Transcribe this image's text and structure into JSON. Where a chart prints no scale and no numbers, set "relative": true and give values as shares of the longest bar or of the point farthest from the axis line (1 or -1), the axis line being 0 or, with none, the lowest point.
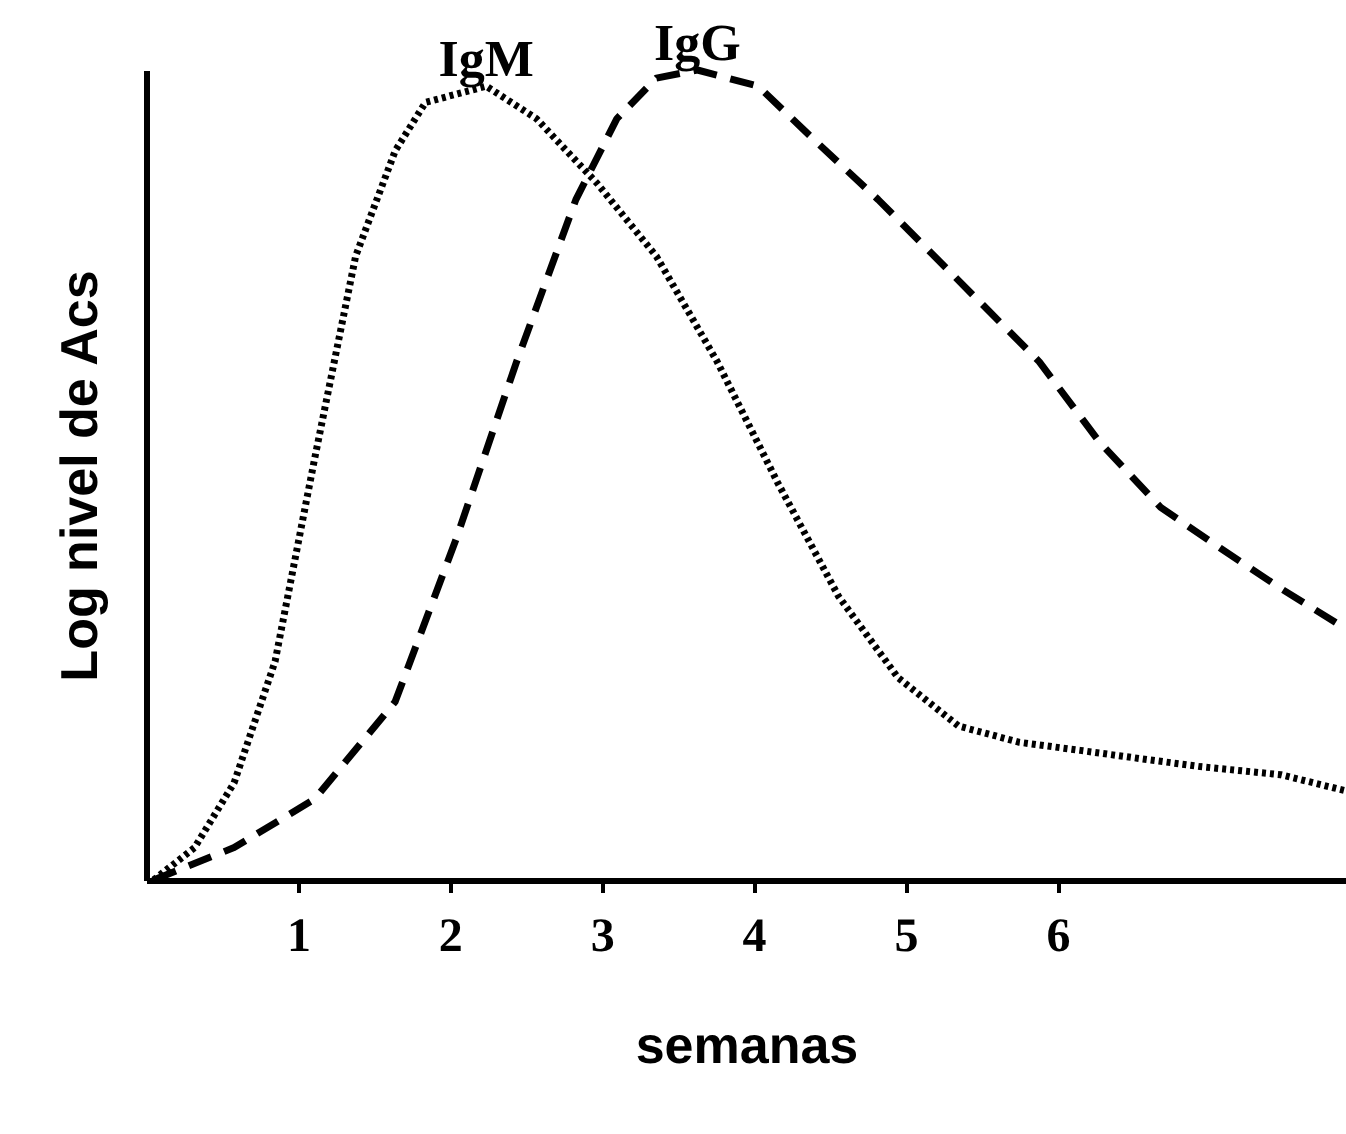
{
  "chart_data": {
    "type": "line",
    "xlabel": "semanas",
    "ylabel": "Log  nivel de Acs",
    "relative": true,
    "xlim": [
      0,
      7.9
    ],
    "xticks": [
      1,
      2,
      3,
      4,
      5,
      6
    ],
    "grid": false,
    "legend": false,
    "series": [
      {
        "name": "IgM",
        "color": "#000000",
        "line_style": "dotted",
        "x": [
          0.05,
          0.32,
          0.58,
          0.85,
          1.11,
          1.38,
          1.64,
          1.84,
          2.24,
          2.57,
          2.97,
          3.36,
          3.76,
          4.16,
          4.56,
          4.95,
          5.35,
          5.75,
          6.15,
          6.54,
          6.94,
          7.47,
          7.9
        ],
        "values": [
          0,
          0.04,
          0.12,
          0.27,
          0.52,
          0.77,
          0.9,
          0.96,
          0.98,
          0.94,
          0.86,
          0.77,
          0.64,
          0.49,
          0.35,
          0.25,
          0.19,
          0.17,
          0.16,
          0.15,
          0.14,
          0.13,
          0.11
        ]
      },
      {
        "name": "IgG",
        "color": "#000000",
        "line_style": "dashed",
        "x": [
          0.05,
          0.58,
          1.11,
          1.64,
          2.04,
          2.44,
          2.83,
          3.1,
          3.36,
          3.63,
          4.03,
          4.42,
          4.82,
          5.35,
          5.88,
          6.28,
          6.68,
          7.07,
          7.47,
          7.9
        ],
        "values": [
          0,
          0.04,
          0.1,
          0.22,
          0.42,
          0.64,
          0.84,
          0.94,
          0.99,
          1,
          0.98,
          0.91,
          0.84,
          0.74,
          0.64,
          0.54,
          0.46,
          0.41,
          0.36,
          0.31
        ]
      }
    ]
  }
}
